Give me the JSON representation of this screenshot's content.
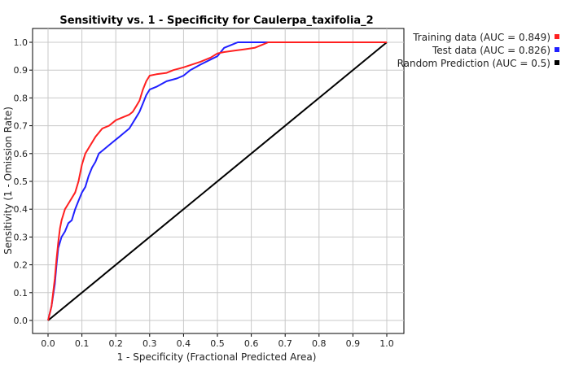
{
  "chart_data": {
    "type": "line",
    "title": "Sensitivity vs. 1 - Specificity for Caulerpa_taxifolia_2",
    "xlabel": "1 - Specificity  (Fractional Predicted Area)",
    "ylabel": "Sensitivity  (1 - Omission Rate)",
    "xlim": [
      0.0,
      1.0
    ],
    "ylim": [
      0.0,
      1.0
    ],
    "xticks": [
      "0.0",
      "0.1",
      "0.2",
      "0.3",
      "0.4",
      "0.5",
      "0.6",
      "0.7",
      "0.8",
      "0.9",
      "1.0"
    ],
    "yticks": [
      "0.0",
      "0.1",
      "0.2",
      "0.3",
      "0.4",
      "0.5",
      "0.6",
      "0.7",
      "0.8",
      "0.9",
      "1.0"
    ],
    "grid": true,
    "legend_position": "top-right outside",
    "series": [
      {
        "name": "Training data (AUC = 0.849)",
        "color": "#ff2020",
        "x": [
          0.0,
          0.01,
          0.02,
          0.025,
          0.03,
          0.035,
          0.04,
          0.05,
          0.06,
          0.08,
          0.09,
          0.1,
          0.11,
          0.12,
          0.14,
          0.16,
          0.18,
          0.2,
          0.22,
          0.24,
          0.25,
          0.26,
          0.27,
          0.28,
          0.29,
          0.3,
          0.32,
          0.35,
          0.37,
          0.4,
          0.45,
          0.48,
          0.5,
          0.52,
          0.55,
          0.58,
          0.61,
          0.63,
          0.65,
          0.7,
          0.8,
          0.9,
          1.0
        ],
        "y": [
          0.0,
          0.05,
          0.15,
          0.22,
          0.28,
          0.33,
          0.36,
          0.4,
          0.42,
          0.46,
          0.5,
          0.56,
          0.6,
          0.62,
          0.66,
          0.69,
          0.7,
          0.72,
          0.73,
          0.74,
          0.75,
          0.77,
          0.79,
          0.83,
          0.86,
          0.88,
          0.885,
          0.89,
          0.9,
          0.91,
          0.93,
          0.945,
          0.96,
          0.965,
          0.97,
          0.975,
          0.98,
          0.99,
          1.0,
          1.0,
          1.0,
          1.0,
          1.0
        ]
      },
      {
        "name": "Test data (AUC = 0.826)",
        "color": "#2020ff",
        "x": [
          0.0,
          0.01,
          0.02,
          0.025,
          0.03,
          0.04,
          0.05,
          0.06,
          0.07,
          0.08,
          0.09,
          0.1,
          0.11,
          0.12,
          0.13,
          0.14,
          0.15,
          0.16,
          0.17,
          0.18,
          0.19,
          0.2,
          0.21,
          0.22,
          0.23,
          0.24,
          0.25,
          0.26,
          0.27,
          0.28,
          0.29,
          0.3,
          0.32,
          0.35,
          0.38,
          0.4,
          0.42,
          0.45,
          0.5,
          0.52,
          0.54,
          0.56,
          0.6,
          0.65,
          0.7,
          0.8,
          0.9,
          1.0
        ],
        "y": [
          0.0,
          0.05,
          0.13,
          0.2,
          0.26,
          0.3,
          0.32,
          0.35,
          0.36,
          0.4,
          0.43,
          0.46,
          0.48,
          0.52,
          0.55,
          0.57,
          0.6,
          0.61,
          0.62,
          0.63,
          0.64,
          0.65,
          0.66,
          0.67,
          0.68,
          0.69,
          0.71,
          0.73,
          0.75,
          0.78,
          0.81,
          0.83,
          0.84,
          0.86,
          0.87,
          0.88,
          0.9,
          0.92,
          0.95,
          0.98,
          0.99,
          1.0,
          1.0,
          1.0,
          1.0,
          1.0,
          1.0,
          1.0
        ]
      },
      {
        "name": "Random Prediction (AUC = 0.5)",
        "color": "#000000",
        "x": [
          0.0,
          1.0
        ],
        "y": [
          0.0,
          1.0
        ]
      }
    ]
  }
}
